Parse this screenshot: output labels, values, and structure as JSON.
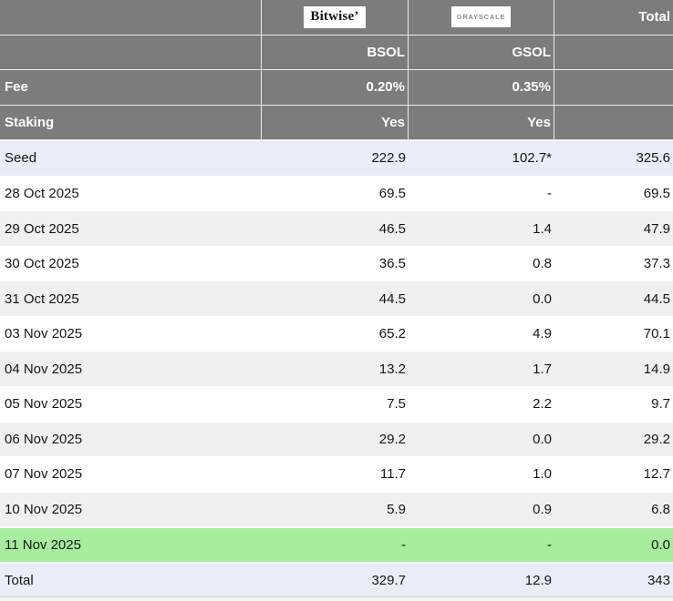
{
  "colors": {
    "header_bg": "#7c7c7c",
    "row_alt_bg": "#f0f0f0",
    "row_highlight_blue": "#e8edf7",
    "row_highlight_green": "#a8ec9e",
    "header_text": "#ffffff",
    "body_text": "#161616"
  },
  "header": {
    "bitwise_logo": "Bitwise’",
    "grayscale_logo": "GRAYSCALE",
    "total_label": "Total",
    "tickers": {
      "bitwise": "BSOL",
      "grayscale": "GSOL"
    },
    "fee": {
      "label": "Fee",
      "bitwise": "0.20%",
      "grayscale": "0.35%"
    },
    "staking": {
      "label": "Staking",
      "bitwise": "Yes",
      "grayscale": "Yes"
    }
  },
  "rows": [
    {
      "label": "Seed",
      "bsol": "222.9",
      "gsol": "102.7*",
      "total": "325.6"
    },
    {
      "label": "28 Oct 2025",
      "bsol": "69.5",
      "gsol": "-",
      "total": "69.5"
    },
    {
      "label": "29 Oct 2025",
      "bsol": "46.5",
      "gsol": "1.4",
      "total": "47.9"
    },
    {
      "label": "30 Oct 2025",
      "bsol": "36.5",
      "gsol": "0.8",
      "total": "37.3"
    },
    {
      "label": "31 Oct 2025",
      "bsol": "44.5",
      "gsol": "0.0",
      "total": "44.5"
    },
    {
      "label": "03 Nov 2025",
      "bsol": "65.2",
      "gsol": "4.9",
      "total": "70.1"
    },
    {
      "label": "04 Nov 2025",
      "bsol": "13.2",
      "gsol": "1.7",
      "total": "14.9"
    },
    {
      "label": "05 Nov 2025",
      "bsol": "7.5",
      "gsol": "2.2",
      "total": "9.7"
    },
    {
      "label": "06 Nov 2025",
      "bsol": "29.2",
      "gsol": "0.0",
      "total": "29.2"
    },
    {
      "label": "07 Nov 2025",
      "bsol": "11.7",
      "gsol": "1.0",
      "total": "12.7"
    },
    {
      "label": "10 Nov 2025",
      "bsol": "5.9",
      "gsol": "0.9",
      "total": "6.8"
    },
    {
      "label": "11 Nov 2025",
      "bsol": "-",
      "gsol": "-",
      "total": "0.0"
    },
    {
      "label": "Total",
      "bsol": "329.7",
      "gsol": "12.9",
      "total": "343"
    }
  ],
  "chart_data": {
    "type": "table",
    "columns": [
      "",
      "Bitwise BSOL",
      "Grayscale GSOL",
      "Total"
    ],
    "fee": {
      "BSOL": "0.20%",
      "GSOL": "0.35%"
    },
    "staking": {
      "BSOL": "Yes",
      "GSOL": "Yes"
    },
    "categories": [
      "Seed",
      "28 Oct 2025",
      "29 Oct 2025",
      "30 Oct 2025",
      "31 Oct 2025",
      "03 Nov 2025",
      "04 Nov 2025",
      "05 Nov 2025",
      "06 Nov 2025",
      "07 Nov 2025",
      "10 Nov 2025",
      "11 Nov 2025"
    ],
    "series": [
      {
        "name": "BSOL",
        "values": [
          222.9,
          69.5,
          46.5,
          36.5,
          44.5,
          65.2,
          13.2,
          7.5,
          29.2,
          11.7,
          5.9,
          null
        ]
      },
      {
        "name": "GSOL",
        "values": [
          102.7,
          null,
          1.4,
          0.8,
          0.0,
          4.9,
          1.7,
          2.2,
          0.0,
          1.0,
          0.9,
          null
        ]
      },
      {
        "name": "Total",
        "values": [
          325.6,
          69.5,
          47.9,
          37.3,
          44.5,
          70.1,
          14.9,
          9.7,
          29.2,
          12.7,
          6.8,
          0.0
        ]
      }
    ],
    "totals": {
      "BSOL": 329.7,
      "GSOL": 12.9,
      "Total": 343
    },
    "annotations": [
      "102.7* (seed value footnote asterisk)"
    ],
    "highlighted_rows": {
      "blue": [
        "Seed",
        "Total"
      ],
      "green": [
        "11 Nov 2025"
      ]
    }
  }
}
